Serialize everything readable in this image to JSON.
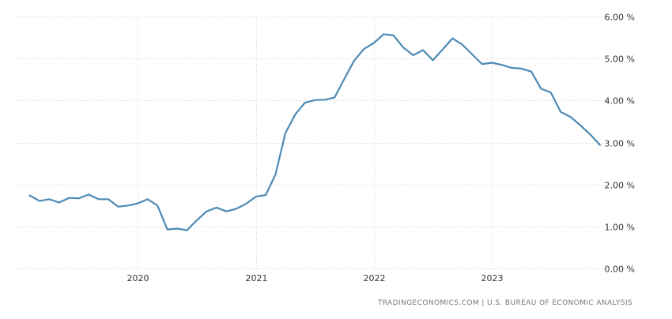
{
  "source": "TRADINGECONOMICS.COM  |  U.S. BUREAU OF ECONOMIC ANALYSIS",
  "colors": {
    "line": "#4d8ab5",
    "grid": "#d4d4d4",
    "text": "#333333",
    "source": "#777777"
  },
  "chart_data": {
    "type": "line",
    "title": "",
    "xlabel": "",
    "ylabel": "",
    "grid": true,
    "y_axis_position": "right",
    "ylim": [
      0,
      6
    ],
    "y_ticks": [
      0,
      1,
      2,
      3,
      4,
      5,
      6
    ],
    "y_tick_labels": [
      "0.00 %",
      "1.00 %",
      "2.00 %",
      "3.00 %",
      "4.00 %",
      "5.00 %",
      "6.00 %"
    ],
    "x_ticks": [
      "2020-01",
      "2021-01",
      "2022-01",
      "2023-01"
    ],
    "x_tick_labels": [
      "2020",
      "2021",
      "2022",
      "2023"
    ],
    "x": [
      "2019-02",
      "2019-03",
      "2019-04",
      "2019-05",
      "2019-06",
      "2019-07",
      "2019-08",
      "2019-09",
      "2019-10",
      "2019-11",
      "2019-12",
      "2020-01",
      "2020-02",
      "2020-03",
      "2020-04",
      "2020-05",
      "2020-06",
      "2020-07",
      "2020-08",
      "2020-09",
      "2020-10",
      "2020-11",
      "2020-12",
      "2021-01",
      "2021-02",
      "2021-03",
      "2021-04",
      "2021-05",
      "2021-06",
      "2021-07",
      "2021-08",
      "2021-09",
      "2021-10",
      "2021-11",
      "2021-12",
      "2022-01",
      "2022-02",
      "2022-03",
      "2022-04",
      "2022-05",
      "2022-06",
      "2022-07",
      "2022-08",
      "2022-09",
      "2022-10",
      "2022-11",
      "2022-12",
      "2023-01",
      "2023-02",
      "2023-03",
      "2023-04",
      "2023-05",
      "2023-06",
      "2023-07",
      "2023-08",
      "2023-09",
      "2023-10",
      "2023-11",
      "2023-12"
    ],
    "series": [
      {
        "values": [
          1.74,
          1.61,
          1.65,
          1.57,
          1.68,
          1.67,
          1.76,
          1.65,
          1.65,
          1.47,
          1.5,
          1.55,
          1.65,
          1.5,
          0.93,
          0.95,
          0.91,
          1.15,
          1.36,
          1.45,
          1.36,
          1.42,
          1.54,
          1.71,
          1.75,
          2.24,
          3.22,
          3.67,
          3.95,
          4.01,
          4.02,
          4.07,
          4.52,
          4.95,
          5.23,
          5.37,
          5.58,
          5.55,
          5.26,
          5.08,
          5.2,
          4.96,
          5.22,
          5.48,
          5.33,
          5.1,
          4.87,
          4.9,
          4.85,
          4.78,
          4.76,
          4.69,
          4.28,
          4.19,
          3.73,
          3.61,
          3.41,
          3.19,
          2.94
        ]
      }
    ]
  }
}
